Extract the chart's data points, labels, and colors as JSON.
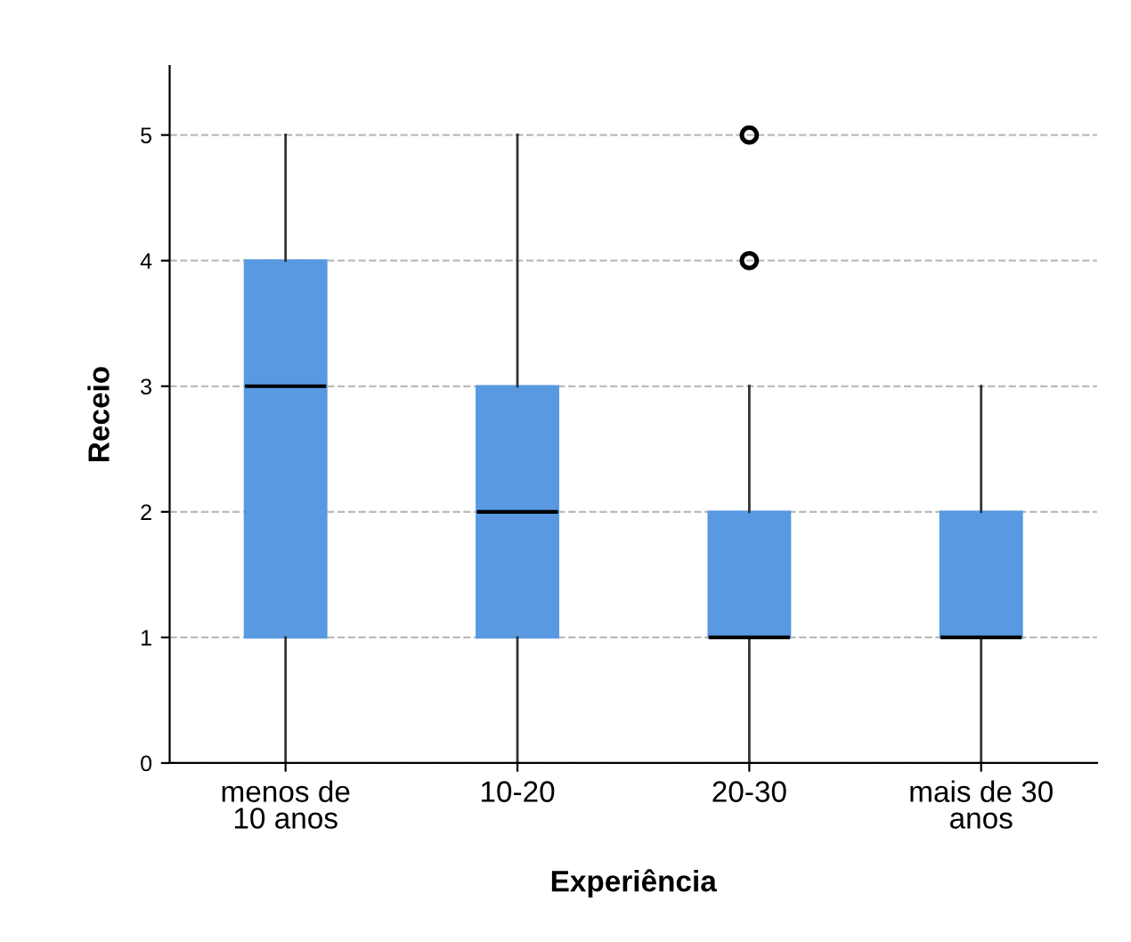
{
  "chart_data": {
    "type": "box",
    "xlabel": "Experiência",
    "ylabel": "Receio",
    "categories": [
      "menos de\n10 anos",
      "10-20",
      "20-30",
      "mais de 30\nanos"
    ],
    "boxes": [
      {
        "low": 0,
        "q1": 1,
        "median": 3,
        "q3": 4,
        "high": 5
      },
      {
        "low": 0,
        "q1": 1,
        "median": 2,
        "q3": 3,
        "high": 5
      },
      {
        "low": 0,
        "q1": 1,
        "median": 1,
        "q3": 2,
        "high": 3,
        "outliers": [
          4,
          5
        ]
      },
      {
        "low": 0,
        "q1": 1,
        "median": 1,
        "q3": 2,
        "high": 3
      }
    ],
    "color": "#5899e2",
    "ylim": [
      0,
      5.55
    ],
    "yticks": [
      0,
      1,
      2,
      3,
      4,
      5
    ],
    "grid": "y",
    "line_style": "dashed"
  }
}
